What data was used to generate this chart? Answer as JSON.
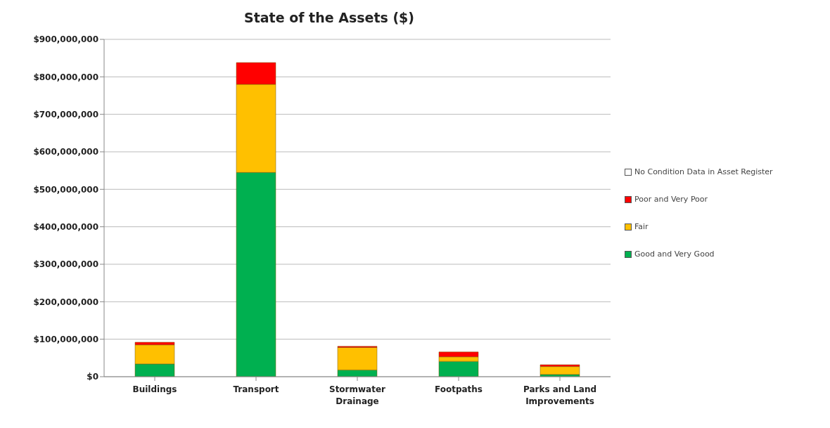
{
  "chart_data": {
    "type": "bar",
    "title": "State of the Assets ($)",
    "categories": [
      "Buildings",
      "Transport",
      "Stormwater Drainage",
      "Footpaths",
      "Parks and Land Improvements"
    ],
    "stacked": true,
    "series": [
      {
        "name": "Good and Very Good",
        "color": "#00b050",
        "values": [
          34000000,
          545000000,
          18000000,
          41000000,
          6000000
        ]
      },
      {
        "name": "Fair",
        "color": "#ffc000",
        "values": [
          51000000,
          235000000,
          60000000,
          12000000,
          21000000
        ]
      },
      {
        "name": "Poor and Very Poor",
        "color": "#ff0000",
        "values": [
          7000000,
          58000000,
          3000000,
          13000000,
          5000000
        ]
      },
      {
        "name": "No Condition Data in Asset Register",
        "color": "#ffffff",
        "values": [
          0,
          0,
          0,
          0,
          0
        ]
      }
    ],
    "ylim": [
      0,
      900000000
    ],
    "yticks": [
      {
        "value": 0,
        "label": "$0"
      },
      {
        "value": 100000000,
        "label": "$100,000,000"
      },
      {
        "value": 200000000,
        "label": "$200,000,000"
      },
      {
        "value": 300000000,
        "label": "$300,000,000"
      },
      {
        "value": 400000000,
        "label": "$400,000,000"
      },
      {
        "value": 500000000,
        "label": "$500,000,000"
      },
      {
        "value": 600000000,
        "label": "$600,000,000"
      },
      {
        "value": 700000000,
        "label": "$700,000,000"
      },
      {
        "value": 800000000,
        "label": "$800,000,000"
      },
      {
        "value": 900000000,
        "label": "$900,000,000"
      }
    ],
    "grid": "y",
    "legend": "right"
  }
}
